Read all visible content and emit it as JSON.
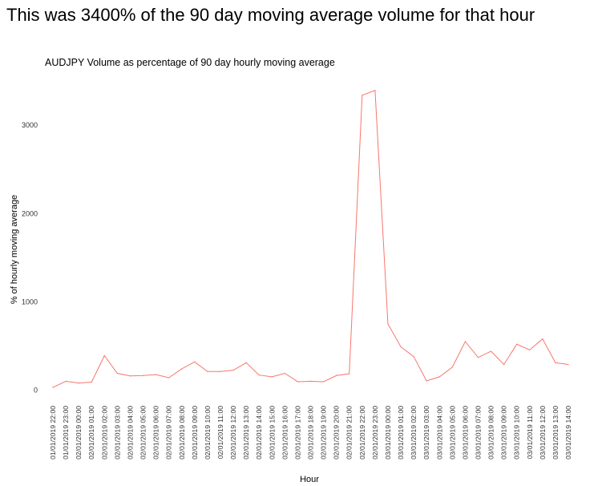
{
  "headline": "This was 3400% of the 90 day moving average volume for that hour",
  "chart_data": {
    "type": "line",
    "title": "AUDJPY Volume as percentage of 90 day hourly moving average",
    "xlabel": "Hour",
    "ylabel": "% of hourly moving average",
    "ylim": [
      -60,
      3420
    ],
    "y_ticks": [
      0,
      1000,
      2000,
      3000
    ],
    "grid": false,
    "line_color": "#f8766d",
    "categories": [
      "01/01/2019 22:00",
      "01/01/2019 23:00",
      "02/01/2019 00:00",
      "02/01/2019 01:00",
      "02/01/2019 02:00",
      "02/01/2019 03:00",
      "02/01/2019 04:00",
      "02/01/2019 05:00",
      "02/01/2019 06:00",
      "02/01/2019 07:00",
      "02/01/2019 08:00",
      "02/01/2019 09:00",
      "02/01/2019 10:00",
      "02/01/2019 11:00",
      "02/01/2019 12:00",
      "02/01/2019 13:00",
      "02/01/2019 14:00",
      "02/01/2019 15:00",
      "02/01/2019 16:00",
      "02/01/2019 17:00",
      "02/01/2019 18:00",
      "02/01/2019 19:00",
      "02/01/2019 20:00",
      "02/01/2019 21:00",
      "02/01/2019 22:00",
      "02/01/2019 23:00",
      "03/01/2019 00:00",
      "03/01/2019 01:00",
      "03/01/2019 02:00",
      "03/01/2019 03:00",
      "03/01/2019 04:00",
      "03/01/2019 05:00",
      "03/01/2019 06:00",
      "03/01/2019 07:00",
      "03/01/2019 08:00",
      "03/01/2019 09:00",
      "03/01/2019 10:00",
      "03/01/2019 11:00",
      "03/01/2019 12:00",
      "03/01/2019 13:00",
      "03/01/2019 14:00"
    ],
    "series": [
      {
        "values": [
          30,
          100,
          80,
          90,
          390,
          190,
          160,
          165,
          175,
          140,
          240,
          320,
          210,
          210,
          225,
          310,
          170,
          150,
          190,
          95,
          100,
          95,
          165,
          185,
          3340,
          3395,
          750,
          490,
          380,
          105,
          150,
          260,
          550,
          370,
          440,
          290,
          520,
          455,
          580,
          310,
          290
        ]
      }
    ]
  }
}
